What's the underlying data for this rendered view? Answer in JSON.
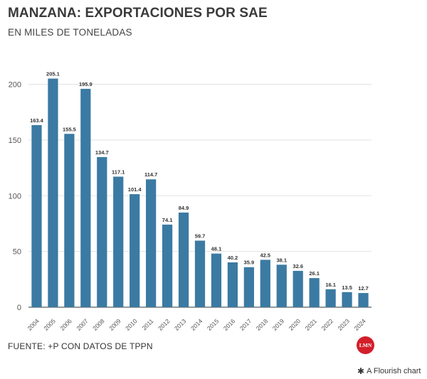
{
  "header": {
    "title": "MANZANA: EXPORTACIONES POR SAE",
    "subtitle": "EN MILES DE TONELADAS"
  },
  "footer": {
    "source": "FUENTE: +P CON DATOS DE TPPN",
    "logo_text": "LMN",
    "credit": "A Flourish chart",
    "credit_icon": "✱"
  },
  "colors": {
    "bar": "#3b7aa3",
    "grid": "#e3e3e3",
    "axis": "#333333",
    "logo": "#d21f2a"
  },
  "chart_data": {
    "type": "bar",
    "title": "MANZANA: EXPORTACIONES POR SAE",
    "subtitle": "EN MILES DE TONELADAS",
    "xlabel": "",
    "ylabel": "",
    "categories": [
      "2004",
      "2005",
      "2006",
      "2007",
      "2008",
      "2009",
      "2010",
      "2011",
      "2012",
      "2013",
      "2014",
      "2015",
      "2016",
      "2017",
      "2018",
      "2019",
      "2020",
      "2021",
      "2022",
      "2023",
      "2024"
    ],
    "values": [
      163.4,
      205.1,
      155.5,
      195.9,
      134.7,
      117.1,
      101.4,
      114.7,
      74.1,
      84.9,
      59.7,
      48.1,
      40.2,
      35.9,
      42.5,
      38.1,
      32.6,
      26.1,
      16.1,
      13.5,
      12.7
    ],
    "data_labels": [
      "163.4",
      "205.1",
      "155.5",
      "195.9",
      "134.7",
      "117.1",
      "101.4",
      "114.7",
      "74.1",
      "84.9",
      "59.7",
      "48.1",
      "40.2",
      "35.9",
      "42.5",
      "38.1",
      "32.6",
      "26.1",
      "16.1",
      "13.5",
      "12.7"
    ],
    "y_ticks": [
      0,
      50,
      100,
      150,
      200
    ],
    "ylim": [
      0,
      215
    ],
    "grid": true,
    "legend": "none"
  }
}
